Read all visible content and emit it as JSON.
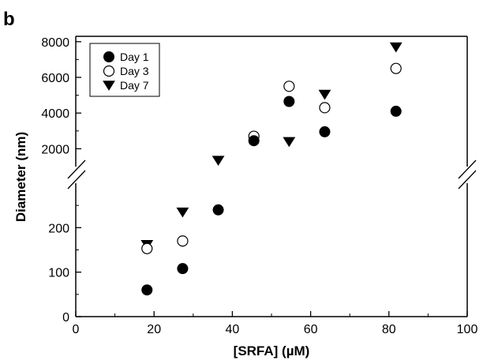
{
  "panel_label": "b",
  "chart_data": {
    "type": "scatter",
    "xlabel": "[SRFA] (µM)",
    "ylabel": "Diameter (nm)",
    "xlim": [
      0,
      100
    ],
    "x_ticks": [
      0,
      20,
      40,
      60,
      80,
      100
    ],
    "y_axis": "broken",
    "lower_ylim": [
      0,
      300
    ],
    "lower_y_ticks": [
      0,
      100,
      200
    ],
    "upper_ylim": [
      1000,
      8300
    ],
    "upper_y_ticks": [
      2000,
      4000,
      6000,
      8000
    ],
    "legend_position": "top-left",
    "grid": false,
    "series": [
      {
        "name": "Day 1",
        "marker": "filled-circle",
        "points": [
          {
            "x": 18.2,
            "y": 60
          },
          {
            "x": 27.3,
            "y": 108
          },
          {
            "x": 36.4,
            "y": 240
          },
          {
            "x": 45.5,
            "y": 2450
          },
          {
            "x": 54.5,
            "y": 4650
          },
          {
            "x": 63.6,
            "y": 2950
          },
          {
            "x": 81.8,
            "y": 4100
          }
        ]
      },
      {
        "name": "Day 3",
        "marker": "open-circle",
        "points": [
          {
            "x": 18.2,
            "y": 153
          },
          {
            "x": 27.3,
            "y": 170
          },
          {
            "x": 45.5,
            "y": 2700
          },
          {
            "x": 54.5,
            "y": 5500
          },
          {
            "x": 63.6,
            "y": 4300
          },
          {
            "x": 81.8,
            "y": 6500
          }
        ]
      },
      {
        "name": "Day 7",
        "marker": "filled-triangle-down",
        "points": [
          {
            "x": 18.2,
            "y": 162
          },
          {
            "x": 27.3,
            "y": 235
          },
          {
            "x": 36.4,
            "y": 1350
          },
          {
            "x": 54.5,
            "y": 2400
          },
          {
            "x": 63.6,
            "y": 5050
          },
          {
            "x": 81.8,
            "y": 7700
          }
        ]
      }
    ]
  }
}
